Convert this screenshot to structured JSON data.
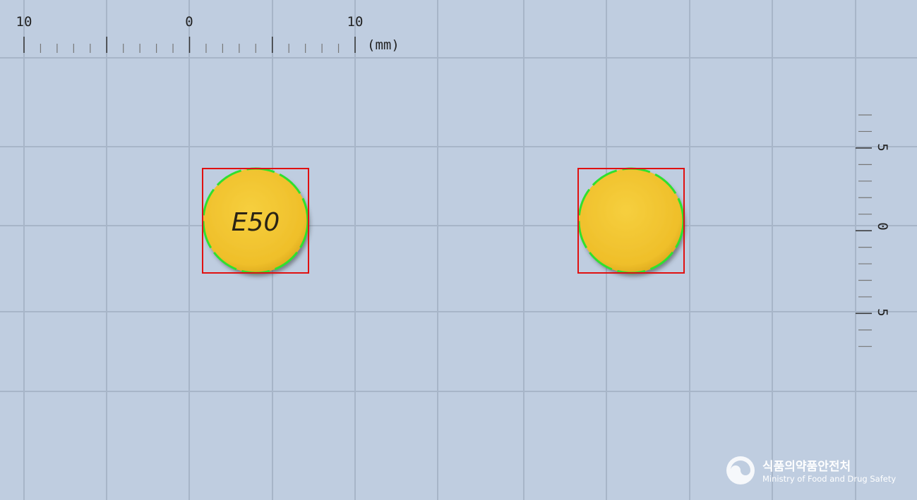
{
  "ruler_top": {
    "labels": [
      "10",
      "0",
      "10"
    ],
    "unit": "(mm)"
  },
  "ruler_right": {
    "labels": [
      "5",
      "0",
      "5"
    ]
  },
  "pills": [
    {
      "imprint": "E50"
    }
  ],
  "logo": {
    "korean": "식품의약품안전처",
    "english": "Ministry of Food and Drug Safety"
  }
}
